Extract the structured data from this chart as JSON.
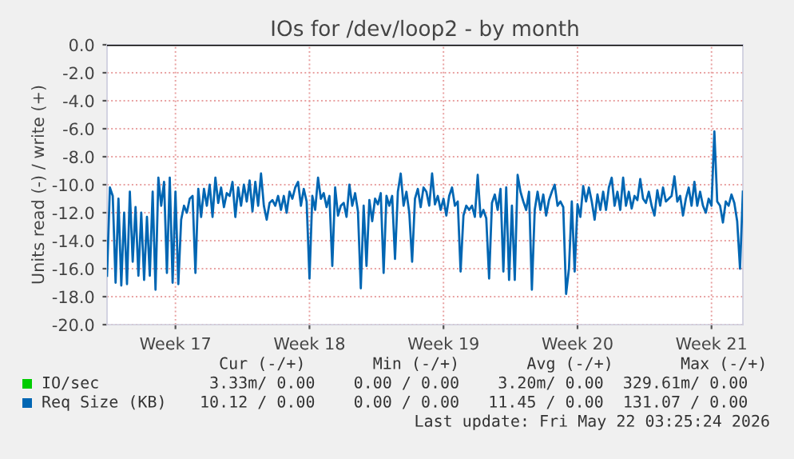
{
  "chart_data": {
    "type": "line",
    "title": "IOs for /dev/loop2 - by month",
    "ylabel": "Units read (-) / write (+)",
    "categories": [
      null,
      null,
      null,
      null,
      null,
      null,
      null,
      null,
      null,
      null,
      null,
      null,
      null,
      null,
      null,
      null,
      null,
      null,
      null,
      null,
      null,
      null,
      null,
      null,
      "Week 17",
      null,
      null,
      null,
      null,
      null,
      null,
      null,
      null,
      null,
      null,
      null,
      null,
      null,
      null,
      null,
      null,
      null,
      null,
      null,
      null,
      null,
      null,
      null,
      null,
      null,
      null,
      null,
      null,
      null,
      null,
      null,
      null,
      null,
      null,
      null,
      null,
      null,
      null,
      null,
      null,
      null,
      null,
      null,
      null,
      null,
      null,
      "Week 18",
      null,
      null,
      null,
      null,
      null,
      null,
      null,
      null,
      null,
      null,
      null,
      null,
      null,
      null,
      null,
      null,
      null,
      null,
      null,
      null,
      null,
      null,
      null,
      null,
      null,
      null,
      null,
      null,
      null,
      null,
      null,
      null,
      null,
      null,
      null,
      null,
      null,
      null,
      null,
      null,
      null,
      null,
      null,
      null,
      null,
      null,
      "Week 19",
      null,
      null,
      null,
      null,
      null,
      null,
      null,
      null,
      null,
      null,
      null,
      null,
      null,
      null,
      null,
      null,
      null,
      null,
      null,
      null,
      null,
      null,
      null,
      null,
      null,
      null,
      null,
      null,
      null,
      null,
      null,
      null,
      null,
      null,
      null,
      null,
      null,
      null,
      null,
      null,
      null,
      null,
      null,
      null,
      null,
      null,
      "Week 20",
      null,
      null,
      null,
      null,
      null,
      null,
      null,
      null,
      null,
      null,
      null,
      null,
      null,
      null,
      null,
      null,
      null,
      null,
      null,
      null,
      null,
      null,
      null,
      null,
      null,
      null,
      null,
      null,
      null,
      null,
      null,
      null,
      null,
      null,
      null,
      null,
      null,
      null,
      null,
      null,
      null,
      null,
      null,
      null,
      null,
      null,
      "Week 21",
      null,
      null,
      null,
      null,
      null,
      null,
      null,
      null,
      null,
      null,
      null
    ],
    "series": [
      {
        "name": "IO/sec",
        "color": "#00cc00",
        "values": [
          null,
          null,
          null,
          null,
          null,
          null,
          null,
          null,
          null,
          null,
          null,
          null,
          null,
          null,
          null,
          null,
          null,
          null,
          null,
          null,
          null,
          null,
          null,
          null,
          null,
          null,
          null,
          null,
          null,
          null,
          null,
          null,
          null,
          null,
          null,
          null,
          null,
          null,
          null,
          null,
          null,
          null,
          null,
          null,
          null,
          null,
          null,
          null,
          null,
          null,
          null,
          null,
          null,
          null,
          null,
          null,
          null,
          null,
          null,
          null,
          null,
          null,
          null,
          null,
          null,
          null,
          null,
          null,
          null,
          null,
          null,
          null,
          null,
          null,
          null,
          null,
          null,
          null,
          null,
          null,
          null,
          null,
          null,
          null,
          null,
          null,
          null,
          null,
          null,
          null,
          null,
          null,
          null,
          null,
          null,
          null,
          null,
          null,
          null,
          null,
          null,
          null,
          null,
          null,
          null,
          null,
          null,
          null,
          null,
          null,
          null,
          null,
          null,
          null,
          null,
          null,
          null,
          null,
          null,
          null,
          null,
          null,
          null,
          null,
          null,
          null,
          null,
          null,
          null,
          null,
          null,
          null,
          null,
          null,
          null,
          null,
          null,
          null,
          null,
          null,
          null,
          null,
          null,
          null,
          null,
          null,
          null,
          null,
          null,
          null,
          null,
          null,
          null,
          null,
          null,
          null,
          null,
          null,
          null,
          null,
          null,
          null,
          null,
          null,
          null,
          null,
          null,
          null,
          null,
          null,
          null,
          null,
          null,
          null,
          null,
          null,
          null,
          null,
          null,
          null,
          null,
          null,
          null,
          null,
          null,
          null,
          null,
          null,
          null,
          null,
          null,
          null,
          null,
          null,
          null,
          null,
          null,
          null,
          null,
          null,
          null,
          null,
          null,
          null,
          null,
          null,
          null,
          null,
          null,
          null,
          null,
          null,
          null,
          null,
          null,
          null,
          null,
          null,
          null,
          null,
          null,
          null,
          null,
          null
        ]
      },
      {
        "name": "Req Size (KB)",
        "color": "#0066b3",
        "values": [
          -16.5,
          -10.2,
          -10.8,
          -17,
          -11,
          -17.2,
          -12,
          -17.1,
          -10.5,
          -15.5,
          -11.6,
          -16.5,
          -12,
          -16.8,
          -12.3,
          -16.5,
          -10.5,
          -17.5,
          -9.5,
          -11.5,
          -9.8,
          -16.3,
          -9.5,
          -17,
          -10.5,
          -17.1,
          -12.5,
          -11.5,
          -12,
          -11,
          -10.8,
          -16.3,
          -10.3,
          -12.3,
          -10.3,
          -11.5,
          -10,
          -12.3,
          -9.5,
          -11.3,
          -10.2,
          -11.6,
          -10.6,
          -10.8,
          -9.8,
          -12.3,
          -10.2,
          -11.5,
          -10,
          -11.2,
          -9.7,
          -11.9,
          -9.8,
          -11.5,
          -9.2,
          -11.5,
          -12.5,
          -11.3,
          -11.1,
          -11.5,
          -10.8,
          -11.8,
          -10.8,
          -12,
          -10.5,
          -11,
          -10.2,
          -9.8,
          -11.5,
          -10.3,
          -11.2,
          -16.7,
          -10.8,
          -11.8,
          -9.5,
          -11,
          -10.6,
          -11.6,
          -10.8,
          -15.8,
          -10.2,
          -12.2,
          -11.5,
          -11.3,
          -12.3,
          -10,
          -11.5,
          -10.6,
          -11.9,
          -17.4,
          -11.5,
          -15.8,
          -11.1,
          -12.6,
          -11,
          -11.4,
          -10.6,
          -16.3,
          -10.8,
          -11.5,
          -10.8,
          -15.3,
          -10.5,
          -9.2,
          -11.5,
          -10.5,
          -12,
          -15.5,
          -11,
          -10.3,
          -11.6,
          -10.2,
          -10.5,
          -11.5,
          -9.2,
          -11.4,
          -10.8,
          -11.8,
          -11,
          -12.2,
          -10.8,
          -10.2,
          -11.5,
          -11.2,
          -16.2,
          -12.2,
          -11.5,
          -11.8,
          -11.5,
          -12.3,
          -9.3,
          -12.3,
          -11.8,
          -12.4,
          -16.7,
          -11.3,
          -10.7,
          -11.8,
          -10.3,
          -16.2,
          -10.2,
          -16.8,
          -11.5,
          -16.8,
          -9.3,
          -10.5,
          -11.2,
          -11.8,
          -10.5,
          -17.5,
          -11.8,
          -10.5,
          -11.8,
          -10.7,
          -12.2,
          -11.1,
          -10.5,
          -10,
          -11.5,
          -11.2,
          -11.6,
          -17.8,
          -16,
          -11.2,
          -16.2,
          -11.4,
          -12.3,
          -10.1,
          -11.2,
          -10.2,
          -11.2,
          -12.5,
          -10.7,
          -11.8,
          -10.5,
          -11.8,
          -10.2,
          -9.5,
          -11.5,
          -10.5,
          -11.8,
          -9.5,
          -11.5,
          -10.5,
          -11.7,
          -10.8,
          -11.1,
          -9.6,
          -11,
          -11.3,
          -10.5,
          -11.5,
          -12.2,
          -10.4,
          -11.5,
          -10.2,
          -11.2,
          -11,
          -10.8,
          -9.4,
          -11.2,
          -10.8,
          -12.2,
          -11,
          -10.2,
          -11.5,
          -9.8,
          -11.5,
          -10.5,
          -11.5,
          -12.0,
          -11,
          -11.5,
          -6.2,
          -11.2,
          -11.5,
          -12.7,
          -11.2,
          -11.5,
          -10.7,
          -11.3,
          -12.6,
          -16.0,
          -10.5
        ]
      }
    ],
    "ylim": [
      -20,
      0
    ],
    "yticks": [
      {
        "value": 0,
        "label": "0.0"
      },
      {
        "value": -2,
        "label": "-2.0"
      },
      {
        "value": -4,
        "label": "-4.0"
      },
      {
        "value": -6,
        "label": "-6.0"
      },
      {
        "value": -8,
        "label": "-8.0"
      },
      {
        "value": -10,
        "label": "-10.0"
      },
      {
        "value": -12,
        "label": "-12.0"
      },
      {
        "value": -14,
        "label": "-14.0"
      },
      {
        "value": -16,
        "label": "-16.0"
      },
      {
        "value": -18,
        "label": "-18.0"
      },
      {
        "value": -20,
        "label": "-20.0"
      }
    ],
    "ref_lines": [
      {
        "axis": "y",
        "value": 0,
        "color": "#000000"
      }
    ],
    "grid": true,
    "legend": "bottom left",
    "line_style": "solid",
    "marker": "none",
    "annotations": [
      "  Cur (-/+)       Min (-/+)       Avg (-/+)       Max (-/+)",
      " 3.33m/ 0.00    0.00 / 0.00    3.20m/ 0.00  329.61m/ 0.00",
      "10.12 / 0.00    0.00 / 0.00   11.45 / 0.00  131.07 / 0.00",
      "Last update: Fri May 22 03:25:24 2026"
    ]
  }
}
